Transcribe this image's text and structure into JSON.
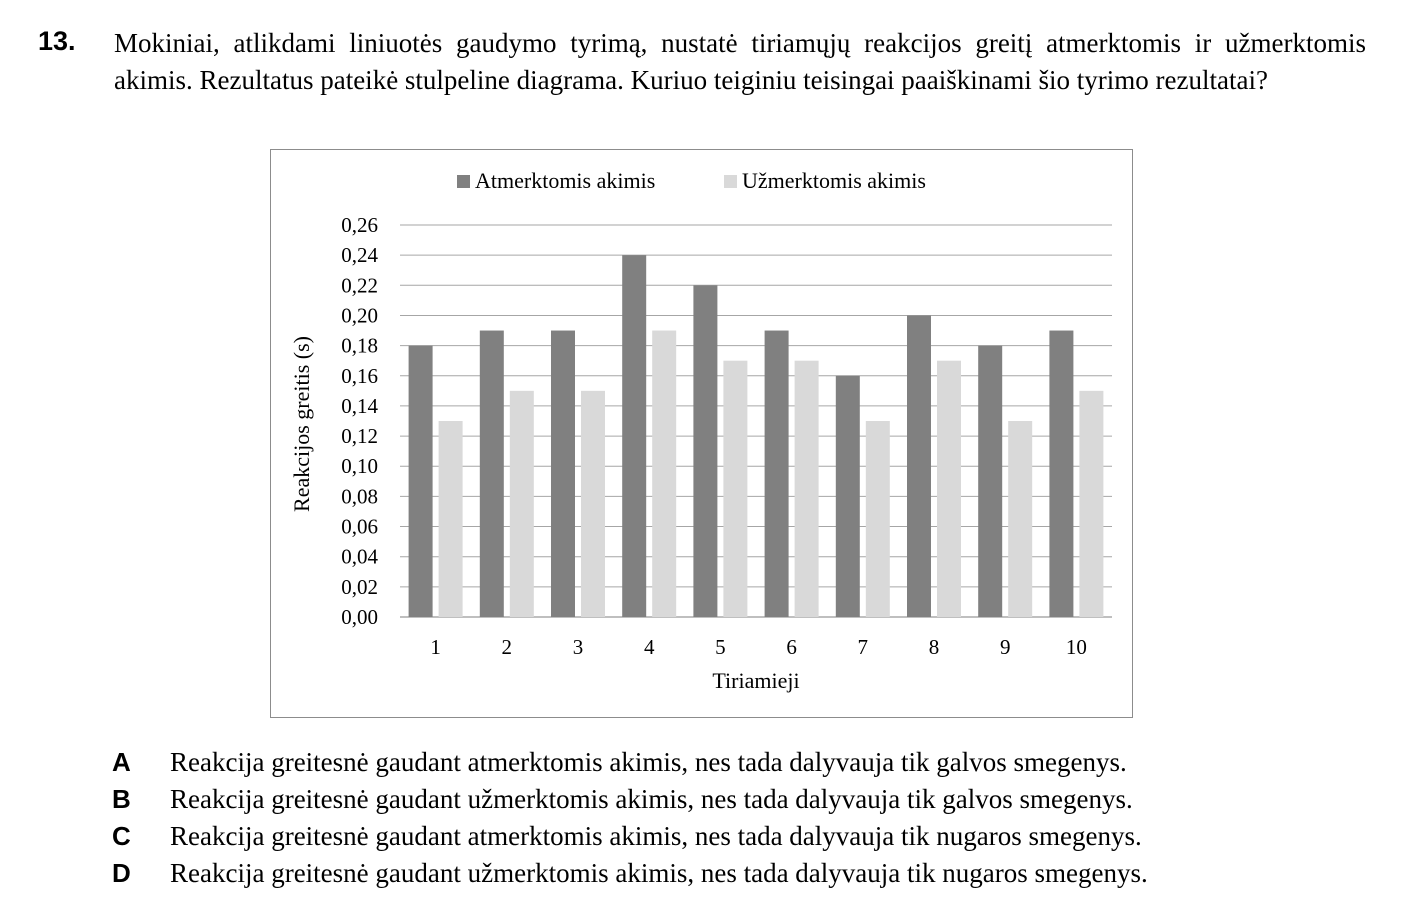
{
  "question": {
    "number": "13.",
    "text": "Mokiniai, atlikdami liniuotės gaudymo tyrimą, nustatė tiriamųjų reakcijos greitį atmerktomis ir užmerktomis akimis. Rezultatus pateikė stulpeline diagrama. Kuriuo teiginiu teisingai paaiškinami šio tyrimo rezultatai?"
  },
  "chart_data": {
    "type": "bar",
    "title": "",
    "xlabel": "Tiriamieji",
    "ylabel": "Reakcijos greitis (s)",
    "categories": [
      "1",
      "2",
      "3",
      "4",
      "5",
      "6",
      "7",
      "8",
      "9",
      "10"
    ],
    "series": [
      {
        "name": "Atmerktomis akimis",
        "color": "#808080",
        "values": [
          0.18,
          0.19,
          0.19,
          0.24,
          0.22,
          0.19,
          0.16,
          0.2,
          0.18,
          0.19
        ]
      },
      {
        "name": "Užmerktomis akimis",
        "color": "#d9d9d9",
        "values": [
          0.13,
          0.15,
          0.15,
          0.19,
          0.17,
          0.17,
          0.13,
          0.17,
          0.13,
          0.15
        ]
      }
    ],
    "ylim": [
      0,
      0.26
    ],
    "yticks": [
      "0,00",
      "0,02",
      "0,04",
      "0,06",
      "0,08",
      "0,10",
      "0,12",
      "0,14",
      "0,16",
      "0,18",
      "0,20",
      "0,22",
      "0,24",
      "0,26"
    ],
    "grid": true,
    "legend_position": "top"
  },
  "answers": [
    {
      "letter": "A",
      "text": "Reakcija greitesnė gaudant atmerktomis akimis, nes tada dalyvauja tik galvos smegenys."
    },
    {
      "letter": "B",
      "text": "Reakcija greitesnė gaudant užmerktomis akimis, nes tada dalyvauja tik galvos smegenys."
    },
    {
      "letter": "C",
      "text": "Reakcija greitesnė gaudant atmerktomis akimis, nes tada dalyvauja tik nugaros smegenys."
    },
    {
      "letter": "D",
      "text": "Reakcija greitesnė gaudant užmerktomis akimis, nes tada dalyvauja tik nugaros smegenys."
    }
  ]
}
